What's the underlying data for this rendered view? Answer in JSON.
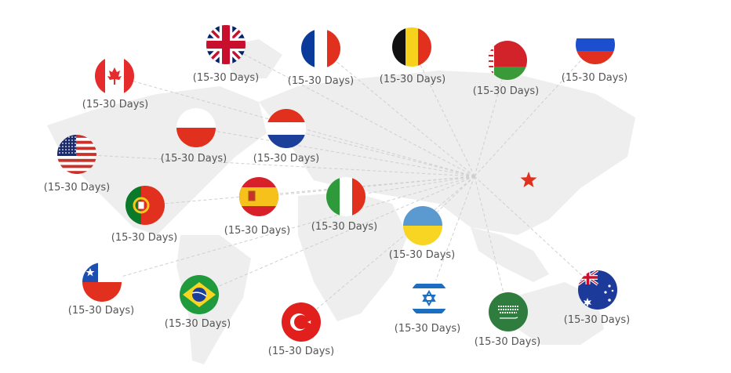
{
  "origin": {
    "icon": "red-star-icon",
    "color": "#e0301e"
  },
  "destinations": [
    {
      "flag": "uk-flag-icon",
      "label": "(15-30 Days)"
    },
    {
      "flag": "france-flag-icon",
      "label": "(15-30 Days)"
    },
    {
      "flag": "belgium-flag-icon",
      "label": "(15-30 Days)"
    },
    {
      "flag": "belarus-flag-icon",
      "label": "(15-30 Days)"
    },
    {
      "flag": "russia-flag-icon",
      "label": "(15-30 Days)"
    },
    {
      "flag": "canada-flag-icon",
      "label": "(15-30 Days)"
    },
    {
      "flag": "poland-flag-icon",
      "label": "(15-30 Days)"
    },
    {
      "flag": "netherlands-flag-icon",
      "label": "(15-30 Days)"
    },
    {
      "flag": "usa-flag-icon",
      "label": "(15-30 Days)"
    },
    {
      "flag": "portugal-flag-icon",
      "label": "(15-30 Days)"
    },
    {
      "flag": "spain-flag-icon",
      "label": "(15-30 Days)"
    },
    {
      "flag": "italy-flag-icon",
      "label": "(15-30 Days)"
    },
    {
      "flag": "ukraine-flag-icon",
      "label": "(15-30 Days)"
    },
    {
      "flag": "chile-flag-icon",
      "label": "(15-30 Days)"
    },
    {
      "flag": "brazil-flag-icon",
      "label": "(15-30 Days)"
    },
    {
      "flag": "turkey-flag-icon",
      "label": "(15-30 Days)"
    },
    {
      "flag": "israel-flag-icon",
      "label": "(15-30 Days)"
    },
    {
      "flag": "saudi-arabia-flag-icon",
      "label": "(15-30 Days)"
    },
    {
      "flag": "australia-flag-icon",
      "label": "(15-30 Days)"
    }
  ]
}
